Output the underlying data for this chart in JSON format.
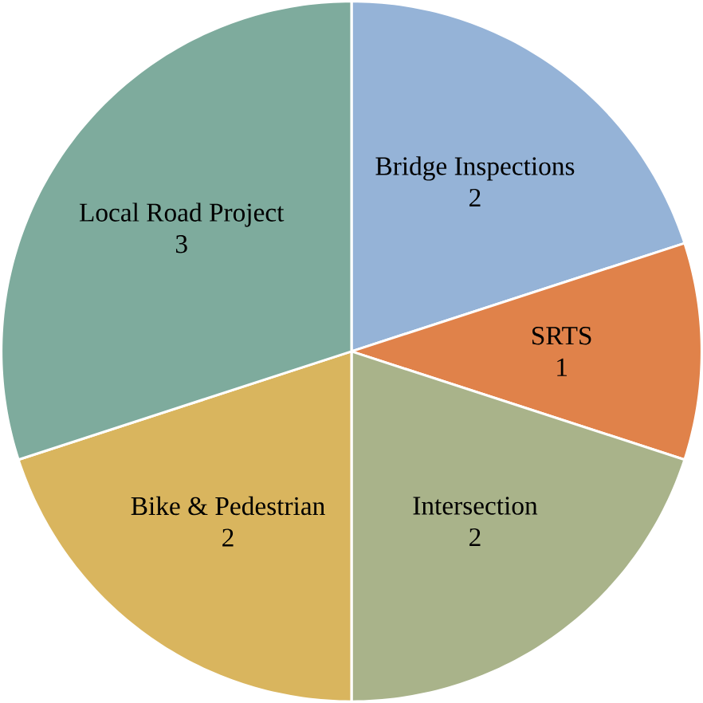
{
  "chart_data": {
    "type": "pie",
    "categories": [
      "Bridge Inspections",
      "SRTS",
      "Intersection",
      "Bike & Pedestrian",
      "Local Road Project"
    ],
    "values": [
      2,
      1,
      2,
      2,
      3
    ],
    "colors": [
      "#95b3d7",
      "#e0824a",
      "#a9b38a",
      "#d9b55e",
      "#7eab9d"
    ],
    "data_labels": true
  }
}
